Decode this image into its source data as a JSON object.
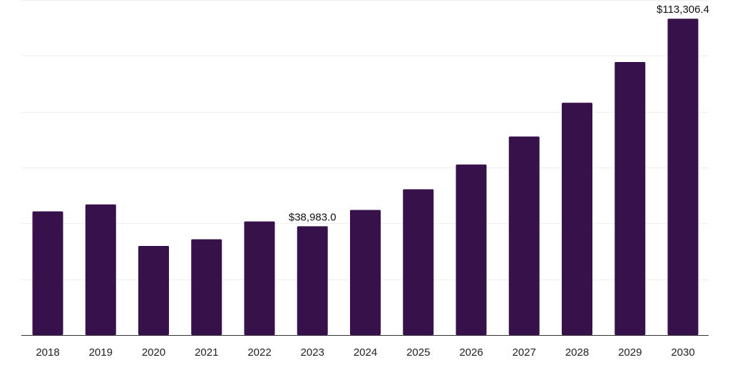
{
  "chart_data": {
    "type": "bar",
    "categories": [
      "2018",
      "2019",
      "2020",
      "2021",
      "2022",
      "2023",
      "2024",
      "2025",
      "2026",
      "2027",
      "2028",
      "2029",
      "2030"
    ],
    "values": [
      44300,
      46800,
      31900,
      34300,
      40700,
      38983.0,
      44800,
      52200,
      61100,
      71100,
      83200,
      97800,
      113306.4
    ],
    "data_labels": [
      {
        "index": 5,
        "text": "$38,983.0"
      },
      {
        "index": 12,
        "text": "$113,306.4"
      }
    ],
    "title": "",
    "xlabel": "",
    "ylabel": "",
    "ylim": [
      0,
      120000
    ],
    "y_gridlines": [
      20000,
      40000,
      60000,
      80000,
      100000,
      120000
    ],
    "y_tick_labels_shown": false,
    "grid": true,
    "legend": "none",
    "bar_color": "#37124a",
    "grid_color": "#eeeeee",
    "axis_color": "#333333"
  }
}
